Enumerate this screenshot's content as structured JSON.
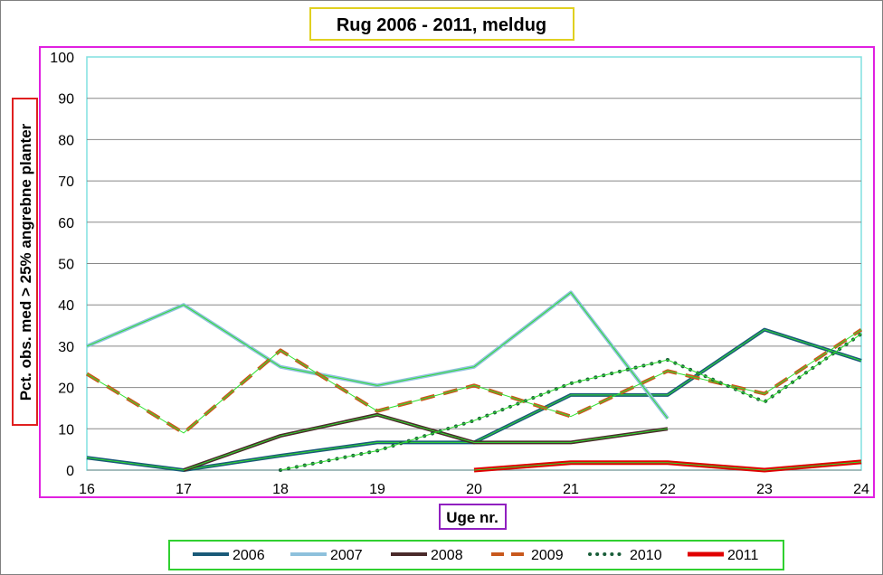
{
  "chart_data": {
    "type": "line",
    "title": "Rug 2006 - 2011, meldug",
    "xlabel": "Uge nr.",
    "ylabel": "Pct. obs. med > 25% angrebne planter",
    "x": [
      16,
      17,
      18,
      19,
      20,
      21,
      22,
      23,
      24
    ],
    "xlim": [
      16,
      24
    ],
    "ylim": [
      0,
      100
    ],
    "yticks": [
      0,
      10,
      20,
      30,
      40,
      50,
      60,
      70,
      80,
      90,
      100
    ],
    "grid": true,
    "legend_position": "bottom",
    "series": [
      {
        "name": "2006",
        "color": "#1a5a78",
        "style": "solid",
        "values": [
          3,
          0,
          3.5,
          6.7,
          6.7,
          18.2,
          18.2,
          34,
          26.5
        ]
      },
      {
        "name": "2007",
        "color": "#8ec1dc",
        "style": "solid",
        "values": [
          30,
          40,
          25,
          20.5,
          25,
          43,
          12.5,
          null,
          null
        ]
      },
      {
        "name": "2008",
        "color": "#4a2a2a",
        "style": "solid",
        "values": [
          null,
          0,
          8.3,
          13.4,
          6.7,
          6.7,
          10,
          null,
          null
        ]
      },
      {
        "name": "2009",
        "color": "#c8581c",
        "style": "dash",
        "values": [
          23.3,
          9,
          29,
          14.3,
          20.5,
          13,
          24,
          18.5,
          34
        ]
      },
      {
        "name": "2010",
        "color": "#1a5e3a",
        "style": "dot",
        "values": [
          null,
          null,
          0,
          4.7,
          12,
          21,
          26.7,
          16.5,
          33
        ]
      },
      {
        "name": "2011",
        "color": "#e00000",
        "style": "solid",
        "values": [
          null,
          null,
          null,
          null,
          0,
          1.8,
          1.8,
          0,
          2
        ]
      }
    ]
  }
}
